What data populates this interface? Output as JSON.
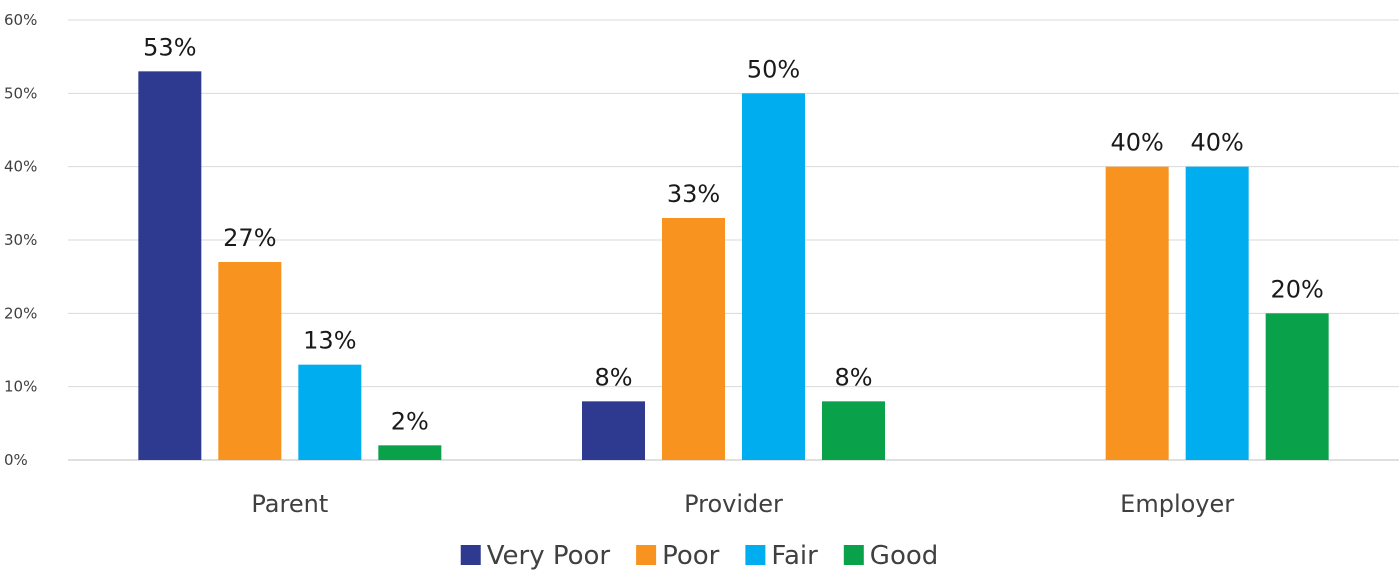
{
  "chart_data": {
    "type": "bar",
    "categories": [
      "Parent",
      "Provider",
      "Employer"
    ],
    "series": [
      {
        "name": "Very Poor",
        "color": "#2e3990",
        "values": [
          53,
          8,
          null
        ]
      },
      {
        "name": "Poor",
        "color": "#f7931e",
        "values": [
          27,
          33,
          40
        ]
      },
      {
        "name": "Fair",
        "color": "#00aeef",
        "values": [
          13,
          50,
          40
        ]
      },
      {
        "name": "Good",
        "color": "#0aa14b",
        "values": [
          2,
          8,
          20
        ]
      }
    ],
    "yticks": [
      "0%",
      "10%",
      "20%",
      "30%",
      "40%",
      "50%",
      "60%"
    ],
    "ylim": [
      0,
      60
    ],
    "value_suffix": "%",
    "grid": true,
    "legend": "bottom"
  }
}
